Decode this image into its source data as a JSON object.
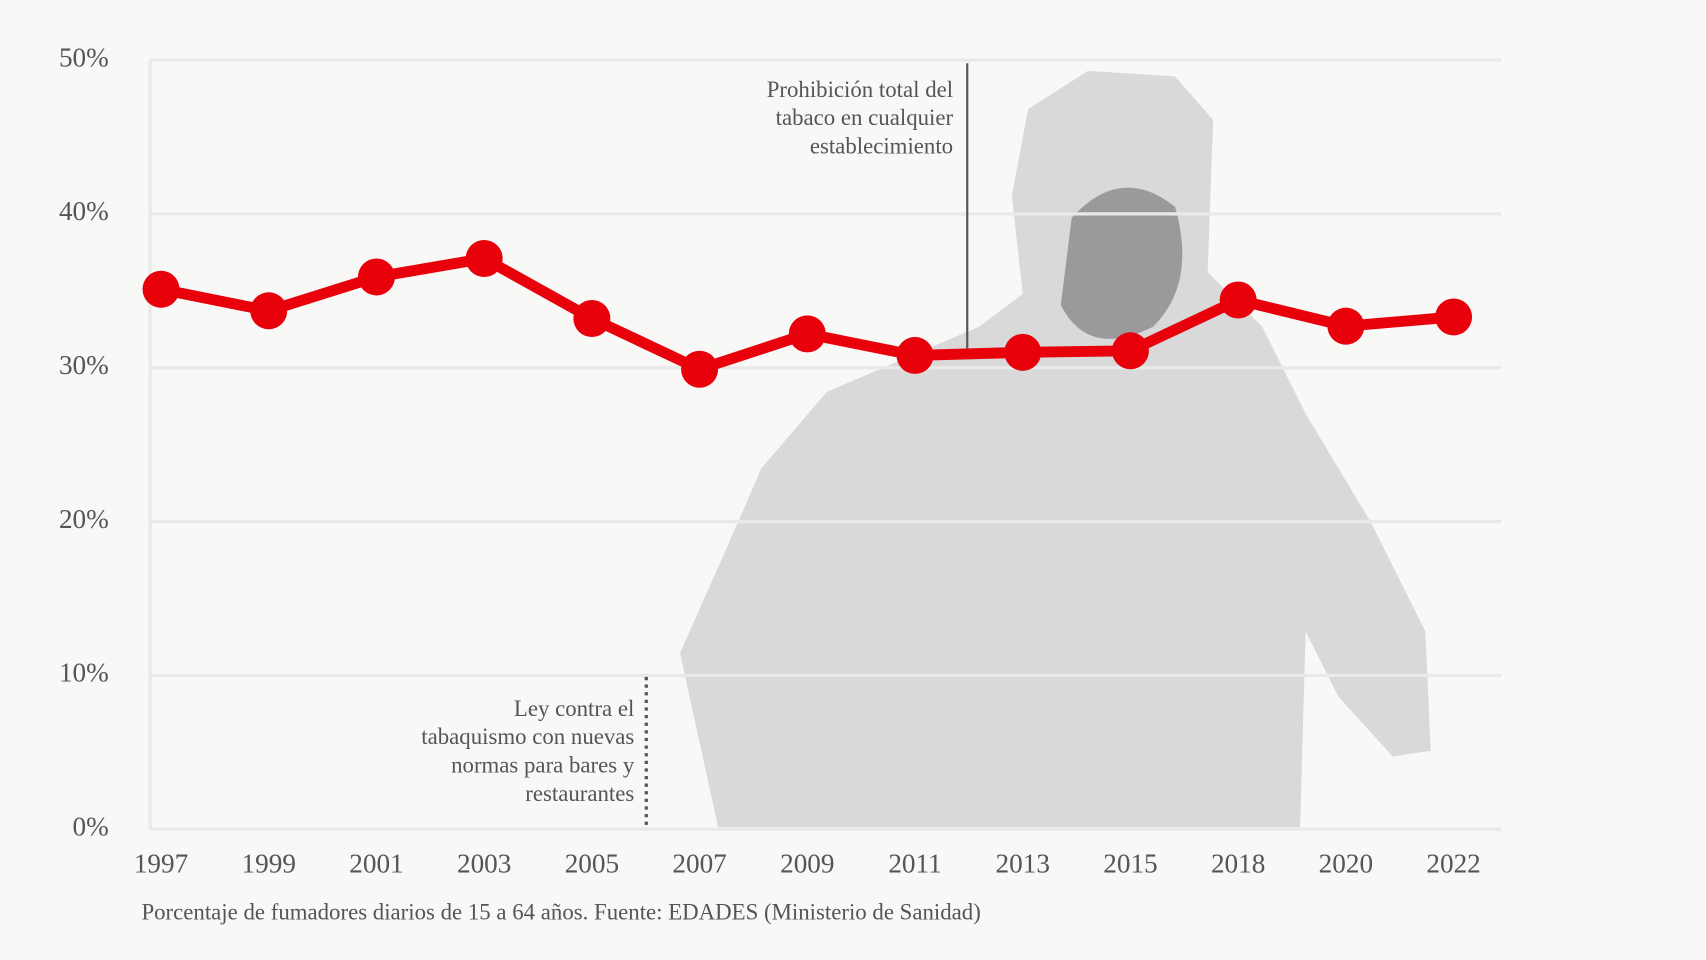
{
  "chart_data": {
    "type": "line",
    "categories": [
      "1997",
      "1999",
      "2001",
      "2003",
      "2005",
      "2007",
      "2009",
      "2011",
      "2013",
      "2015",
      "2018",
      "2020",
      "2022"
    ],
    "values": [
      35.1,
      33.7,
      35.9,
      37.1,
      33.2,
      29.9,
      32.2,
      30.8,
      31.0,
      31.1,
      34.4,
      32.7,
      33.3
    ],
    "color": "#e8000b",
    "ylim": [
      0,
      50
    ],
    "yticks": [
      {
        "value": 0,
        "label": "0%"
      },
      {
        "value": 10,
        "label": "10%"
      },
      {
        "value": 20,
        "label": "20%"
      },
      {
        "value": 30,
        "label": "30%"
      },
      {
        "value": 40,
        "label": "40%"
      },
      {
        "value": 50,
        "label": "50%"
      }
    ],
    "grid": true,
    "annotations": [
      {
        "lines": [
          "Ley contra el",
          "tabaquismo con nuevas",
          "normas para bares y",
          "restaurantes"
        ]
      },
      {
        "lines": [
          "Prohibición total del",
          "tabaco en cualquier",
          "establecimiento"
        ]
      }
    ],
    "caption": "Porcentaje de fumadores diarios de 15 a 64 años. Fuente: EDADES (Ministerio de Sanidad)"
  }
}
